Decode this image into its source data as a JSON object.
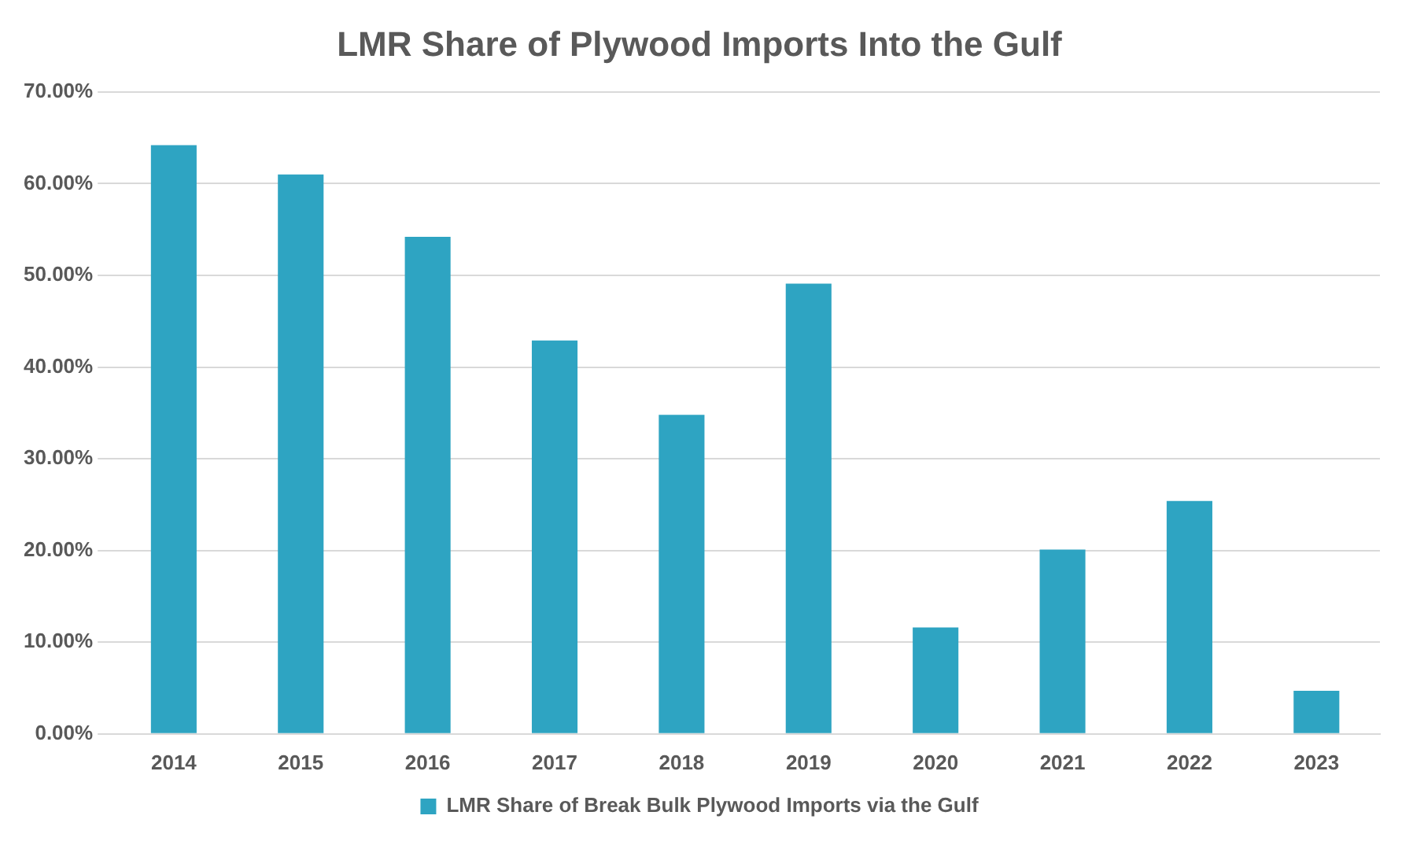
{
  "chart_data": {
    "type": "bar",
    "title": "LMR Share of Plywood Imports Into the Gulf",
    "categories": [
      "2014",
      "2015",
      "2016",
      "2017",
      "2018",
      "2019",
      "2020",
      "2021",
      "2022",
      "2023"
    ],
    "series": [
      {
        "name": "LMR Share of Break Bulk Plywood Imports via the Gulf",
        "color": "#2ea4c2",
        "values": [
          64.2,
          61.0,
          54.2,
          42.9,
          34.8,
          49.1,
          11.6,
          20.1,
          25.4,
          4.7
        ]
      }
    ],
    "ylim": [
      0,
      70
    ],
    "yticks": [
      {
        "value": 0,
        "label": "0.00%"
      },
      {
        "value": 10,
        "label": "10.00%"
      },
      {
        "value": 20,
        "label": "20.00%"
      },
      {
        "value": 30,
        "label": "30.00%"
      },
      {
        "value": 40,
        "label": "40.00%"
      },
      {
        "value": 50,
        "label": "50.00%"
      },
      {
        "value": 60,
        "label": "60.00%"
      },
      {
        "value": 70,
        "label": "70.00%"
      }
    ],
    "grid": "y",
    "legend": "bottom"
  }
}
